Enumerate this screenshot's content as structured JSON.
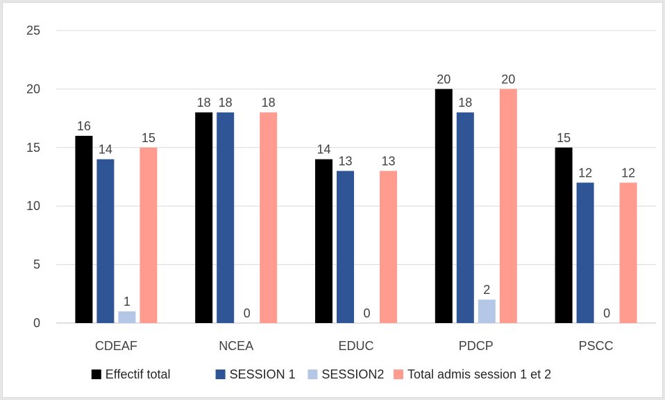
{
  "chart_data": {
    "type": "bar",
    "categories": [
      "CDEAF",
      "NCEA",
      "EDUC",
      "PDCP",
      "PSCC"
    ],
    "series": [
      {
        "name": "Effectif total",
        "color": "#000000",
        "values": [
          16,
          18,
          14,
          20,
          15
        ]
      },
      {
        "name": "SESSION 1",
        "color": "#2f5597",
        "values": [
          14,
          18,
          13,
          18,
          12
        ]
      },
      {
        "name": "SESSION2",
        "color": "#b4c7e7",
        "values": [
          1,
          0,
          0,
          2,
          0
        ]
      },
      {
        "name": "Total admis session 1 et 2",
        "color": "#ff9b8f",
        "values": [
          15,
          18,
          13,
          20,
          12
        ]
      }
    ],
    "ylim": [
      0,
      25
    ],
    "yticks": [
      0,
      5,
      10,
      15,
      20,
      25
    ],
    "grid": true,
    "legend": "bottom",
    "data_labels": true
  }
}
